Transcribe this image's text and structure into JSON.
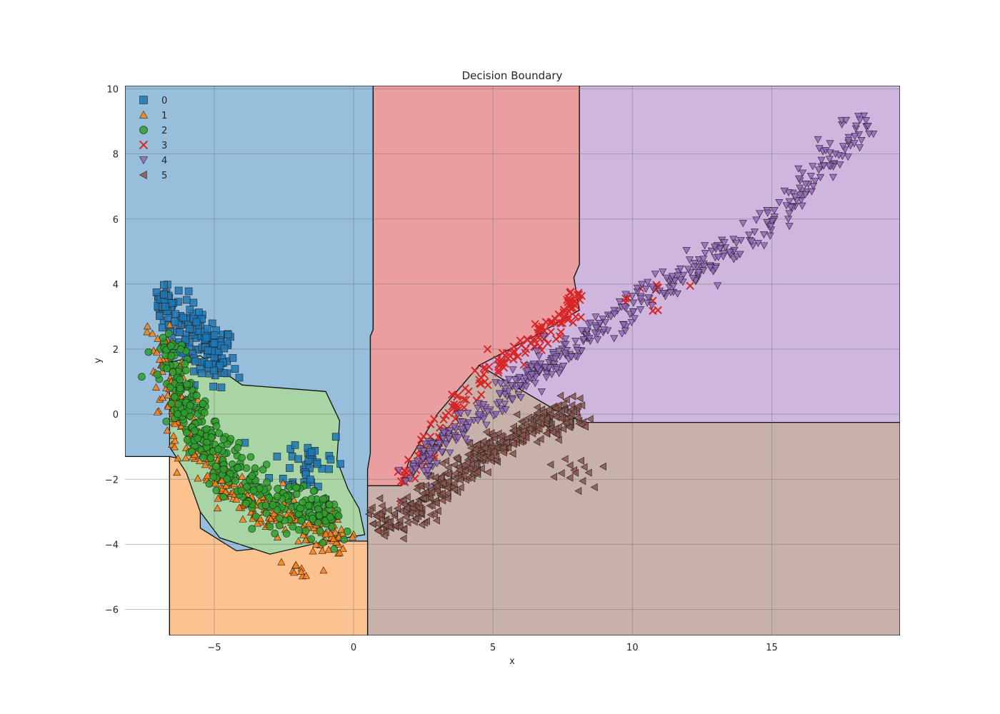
{
  "chart_data": {
    "type": "scatter",
    "title": "Decision Boundary",
    "xlabel": "x",
    "ylabel": "y",
    "xlim": [
      -8.2,
      19.6
    ],
    "ylim": [
      -6.8,
      10.1
    ],
    "xticks": [
      -5,
      0,
      5,
      10,
      15
    ],
    "xtick_labels": [
      "−5",
      "0",
      "5",
      "10",
      "15"
    ],
    "yticks": [
      -6,
      -4,
      -2,
      0,
      2,
      4,
      6,
      8,
      10
    ],
    "ytick_labels": [
      "−6",
      "−4",
      "−2",
      "0",
      "2",
      "4",
      "6",
      "8",
      "10"
    ],
    "grid": true,
    "legend_position": "top-left",
    "regions": [
      {
        "class": "0",
        "color": "#97bfdc",
        "polygon": [
          [
            -8.2,
            10.1
          ],
          [
            0.7,
            10.1
          ],
          [
            0.7,
            2.6
          ],
          [
            0.6,
            2.4
          ],
          [
            0.6,
            -1.2
          ],
          [
            0.5,
            -1.7
          ],
          [
            0.5,
            -6.8
          ],
          [
            -6.6,
            -6.8
          ],
          [
            -6.6,
            -1.3
          ],
          [
            -8.2,
            -1.3
          ]
        ]
      },
      {
        "class": "3",
        "color": "#eb9e9f",
        "polygon": [
          [
            0.7,
            10.1
          ],
          [
            8.1,
            10.1
          ],
          [
            8.1,
            4.6
          ],
          [
            7.9,
            4.2
          ],
          [
            8.1,
            3.2
          ],
          [
            6.5,
            2.4
          ],
          [
            4.5,
            1.5
          ],
          [
            3.0,
            0.0
          ],
          [
            2.0,
            -1.4
          ],
          [
            1.7,
            -2.2
          ],
          [
            0.5,
            -2.2
          ],
          [
            0.5,
            -1.7
          ],
          [
            0.6,
            -1.2
          ],
          [
            0.6,
            2.4
          ],
          [
            0.7,
            2.6
          ]
        ]
      },
      {
        "class": "4",
        "color": "#ceb6de",
        "polygon": [
          [
            8.1,
            10.1
          ],
          [
            19.6,
            10.1
          ],
          [
            19.6,
            -0.25
          ],
          [
            8.3,
            -0.25
          ],
          [
            7.5,
            0.0
          ],
          [
            5.5,
            1.0
          ],
          [
            4.5,
            1.5
          ],
          [
            6.5,
            2.4
          ],
          [
            8.1,
            3.2
          ],
          [
            7.9,
            4.2
          ],
          [
            8.1,
            4.6
          ]
        ]
      },
      {
        "class": "5",
        "color": "#c9b1ab",
        "polygon": [
          [
            0.5,
            -2.2
          ],
          [
            1.7,
            -2.2
          ],
          [
            2.0,
            -1.4
          ],
          [
            3.0,
            0.0
          ],
          [
            4.5,
            1.5
          ],
          [
            5.5,
            1.0
          ],
          [
            7.5,
            0.0
          ],
          [
            8.3,
            -0.25
          ],
          [
            19.6,
            -0.25
          ],
          [
            19.6,
            -6.8
          ],
          [
            0.5,
            -6.8
          ]
        ]
      },
      {
        "class": "1",
        "color": "#fcc391",
        "polygon": [
          [
            -6.6,
            -1.3
          ],
          [
            -5.5,
            -1.5
          ],
          [
            -5.5,
            -3.5
          ],
          [
            -4.2,
            -4.2
          ],
          [
            -1.0,
            -3.9
          ],
          [
            0.5,
            -3.9
          ],
          [
            0.5,
            -6.8
          ],
          [
            -6.6,
            -6.8
          ]
        ]
      },
      {
        "class": "2",
        "color": "#a8d5a3",
        "polygon": [
          [
            -6.6,
            1.6
          ],
          [
            -5.5,
            1.8
          ],
          [
            -4.0,
            0.9
          ],
          [
            -2.5,
            0.8
          ],
          [
            -1.0,
            0.7
          ],
          [
            -0.5,
            -0.2
          ],
          [
            -0.6,
            -1.4
          ],
          [
            -0.2,
            -2.3
          ],
          [
            0.2,
            -2.9
          ],
          [
            0.4,
            -3.7
          ],
          [
            -1.0,
            -3.9
          ],
          [
            -3.0,
            -4.3
          ],
          [
            -4.8,
            -3.8
          ],
          [
            -5.5,
            -3.0
          ],
          [
            -6.0,
            -1.8
          ],
          [
            -6.6,
            -1.0
          ]
        ]
      }
    ],
    "classes": [
      {
        "name": "0",
        "color": "#1f77b4",
        "marker": "s",
        "count": 140,
        "shape": "blob",
        "center": [
          -5.5,
          2.2
        ],
        "spread": [
          1.1,
          0.9
        ],
        "tilt": -0.55
      },
      {
        "name": "0",
        "color": "#1f77b4",
        "marker": "s",
        "count": 40,
        "shape": "blob",
        "center": [
          -1.6,
          -1.5
        ],
        "spread": [
          1.1,
          0.9
        ],
        "tilt": 0.0
      },
      {
        "name": "0",
        "color": "#1f77b4",
        "marker": "s",
        "count": 35,
        "shape": "blob",
        "center": [
          -6.8,
          3.5
        ],
        "spread": [
          0.25,
          0.35
        ],
        "tilt": 0.0
      },
      {
        "name": "1",
        "color": "#ff7f0e",
        "marker": "^",
        "count": 320,
        "shape": "curve",
        "path": [
          [
            -6.9,
            2.4
          ],
          [
            -6.5,
            0.6
          ],
          [
            -6.0,
            -0.6
          ],
          [
            -5.2,
            -1.6
          ],
          [
            -4.2,
            -2.5
          ],
          [
            -3.0,
            -3.0
          ],
          [
            -1.5,
            -3.4
          ],
          [
            -0.5,
            -3.8
          ]
        ],
        "spread": [
          0.5,
          0.5
        ]
      },
      {
        "name": "1",
        "color": "#ff7f0e",
        "marker": "^",
        "count": 10,
        "shape": "blob",
        "center": [
          -2.0,
          -4.8
        ],
        "spread": [
          0.9,
          0.5
        ],
        "tilt": 0.0
      },
      {
        "name": "2",
        "color": "#2ca02c",
        "marker": "o",
        "count": 360,
        "shape": "curve",
        "path": [
          [
            -6.7,
            2.2
          ],
          [
            -6.3,
            0.8
          ],
          [
            -5.8,
            -0.2
          ],
          [
            -5.0,
            -1.2
          ],
          [
            -4.0,
            -2.0
          ],
          [
            -3.0,
            -2.6
          ],
          [
            -1.8,
            -2.9
          ],
          [
            -0.8,
            -3.2
          ]
        ],
        "spread": [
          0.6,
          0.6
        ]
      },
      {
        "name": "3",
        "color": "#d62728",
        "marker": "x",
        "count": 170,
        "shape": "curve",
        "path": [
          [
            1.8,
            -2.1
          ],
          [
            2.5,
            -1.2
          ],
          [
            3.5,
            0.0
          ],
          [
            4.5,
            1.0
          ],
          [
            5.5,
            1.7
          ],
          [
            6.5,
            2.3
          ],
          [
            7.5,
            3.0
          ],
          [
            8.0,
            3.6
          ]
        ],
        "spread": [
          0.35,
          0.3
        ]
      },
      {
        "name": "3",
        "color": "#d62728",
        "marker": "x",
        "count": 12,
        "shape": "blob",
        "center": [
          10.5,
          3.6
        ],
        "spread": [
          0.9,
          0.6
        ],
        "tilt": 0.0
      },
      {
        "name": "4",
        "color": "#9467bd",
        "marker": "v",
        "count": 460,
        "shape": "curve",
        "path": [
          [
            2.0,
            -2.0
          ],
          [
            3.0,
            -1.0
          ],
          [
            4.5,
            0.0
          ],
          [
            6.0,
            1.0
          ],
          [
            7.5,
            1.9
          ],
          [
            9.0,
            2.7
          ],
          [
            10.5,
            3.6
          ],
          [
            12.5,
            4.6
          ],
          [
            14.5,
            5.5
          ],
          [
            16.5,
            7.3
          ],
          [
            18.3,
            9.0
          ]
        ],
        "spread": [
          0.55,
          0.35
        ]
      },
      {
        "name": "4",
        "color": "#9467bd",
        "marker": "v",
        "count": 3,
        "shape": "blob",
        "center": [
          18.4,
          8.9
        ],
        "spread": [
          0.2,
          0.2
        ],
        "tilt": 0.0
      },
      {
        "name": "5",
        "color": "#8c564b",
        "marker": "<",
        "count": 420,
        "shape": "curve",
        "path": [
          [
            0.8,
            -3.4
          ],
          [
            2.0,
            -3.1
          ],
          [
            3.0,
            -2.4
          ],
          [
            4.0,
            -1.6
          ],
          [
            5.0,
            -1.0
          ],
          [
            6.0,
            -0.6
          ],
          [
            7.0,
            -0.2
          ],
          [
            8.0,
            0.1
          ]
        ],
        "spread": [
          0.4,
          0.45
        ]
      },
      {
        "name": "5",
        "color": "#8c564b",
        "marker": "<",
        "count": 15,
        "shape": "blob",
        "center": [
          8.0,
          -1.7
        ],
        "spread": [
          0.8,
          0.5
        ],
        "tilt": 0.0
      }
    ],
    "legend": [
      {
        "label": "0",
        "color": "#1f77b4",
        "marker": "s"
      },
      {
        "label": "1",
        "color": "#ff7f0e",
        "marker": "^"
      },
      {
        "label": "2",
        "color": "#2ca02c",
        "marker": "o"
      },
      {
        "label": "3",
        "color": "#d62728",
        "marker": "x"
      },
      {
        "label": "4",
        "color": "#9467bd",
        "marker": "v"
      },
      {
        "label": "5",
        "color": "#8c564b",
        "marker": "<"
      }
    ]
  }
}
